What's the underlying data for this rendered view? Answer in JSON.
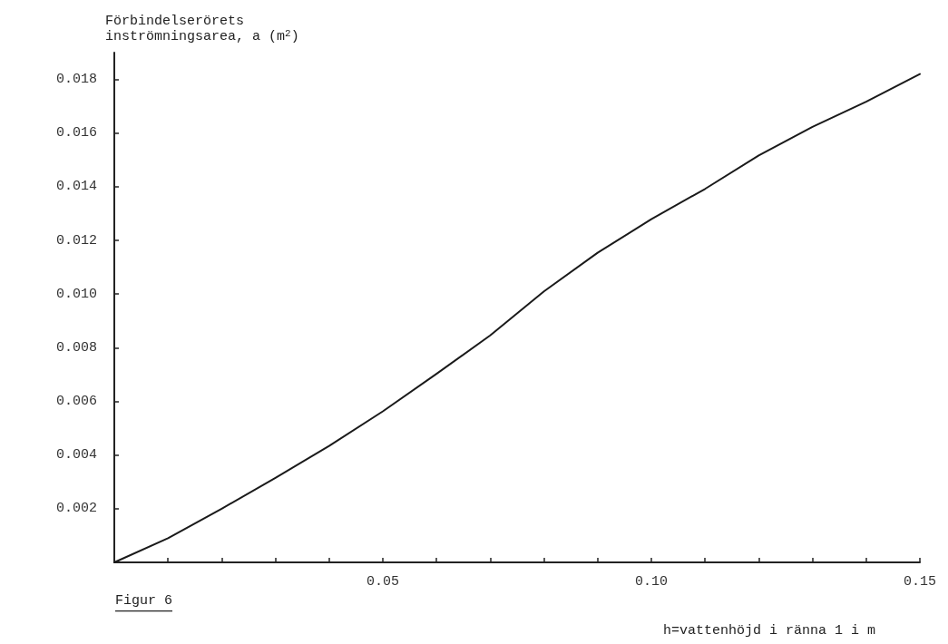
{
  "chart_data": {
    "type": "line",
    "ylabel": "Förbindelserörets\ninströmningsarea, a (m$^{2}$)",
    "xlabel": "h=vattenhöjd i ränna 1 i m",
    "annotations": [
      "Figur 6"
    ],
    "x": [
      0,
      0.01,
      0.02,
      0.03,
      0.04,
      0.05,
      0.06,
      0.07,
      0.08,
      0.09,
      0.1,
      0.11,
      0.12,
      0.13,
      0.14,
      0.15
    ],
    "series": [
      {
        "color": "#1a1a1a",
        "values": [
          0,
          0.0009,
          0.002,
          0.00315,
          0.00434,
          0.00563,
          0.00703,
          0.00846,
          0.0101,
          0.01154,
          0.01279,
          0.01392,
          0.01517,
          0.01623,
          0.01717,
          0.0182
        ]
      }
    ],
    "xlim": [
      0,
      0.15
    ],
    "ylim": [
      0,
      0.019
    ],
    "xticks": [
      {
        "value": 0.01,
        "label": null
      },
      {
        "value": 0.02,
        "label": null
      },
      {
        "value": 0.03,
        "label": null
      },
      {
        "value": 0.04,
        "label": null
      },
      0.05,
      {
        "value": 0.06,
        "label": null
      },
      {
        "value": 0.07,
        "label": null
      },
      {
        "value": 0.08,
        "label": null
      },
      {
        "value": 0.09,
        "label": null
      },
      {
        "value": 0.1,
        "label": "0.10"
      },
      {
        "value": 0.11,
        "label": null
      },
      {
        "value": 0.12,
        "label": null
      },
      {
        "value": 0.13,
        "label": null
      },
      {
        "value": 0.14,
        "label": null
      },
      0.15
    ],
    "yticks": [
      0.002,
      0.004,
      0.006,
      0.008,
      {
        "value": 0.01,
        "label": "0.010"
      },
      0.012,
      0.014,
      0.016,
      0.018
    ],
    "grid": false,
    "marker": "none",
    "line_style": "solid"
  }
}
